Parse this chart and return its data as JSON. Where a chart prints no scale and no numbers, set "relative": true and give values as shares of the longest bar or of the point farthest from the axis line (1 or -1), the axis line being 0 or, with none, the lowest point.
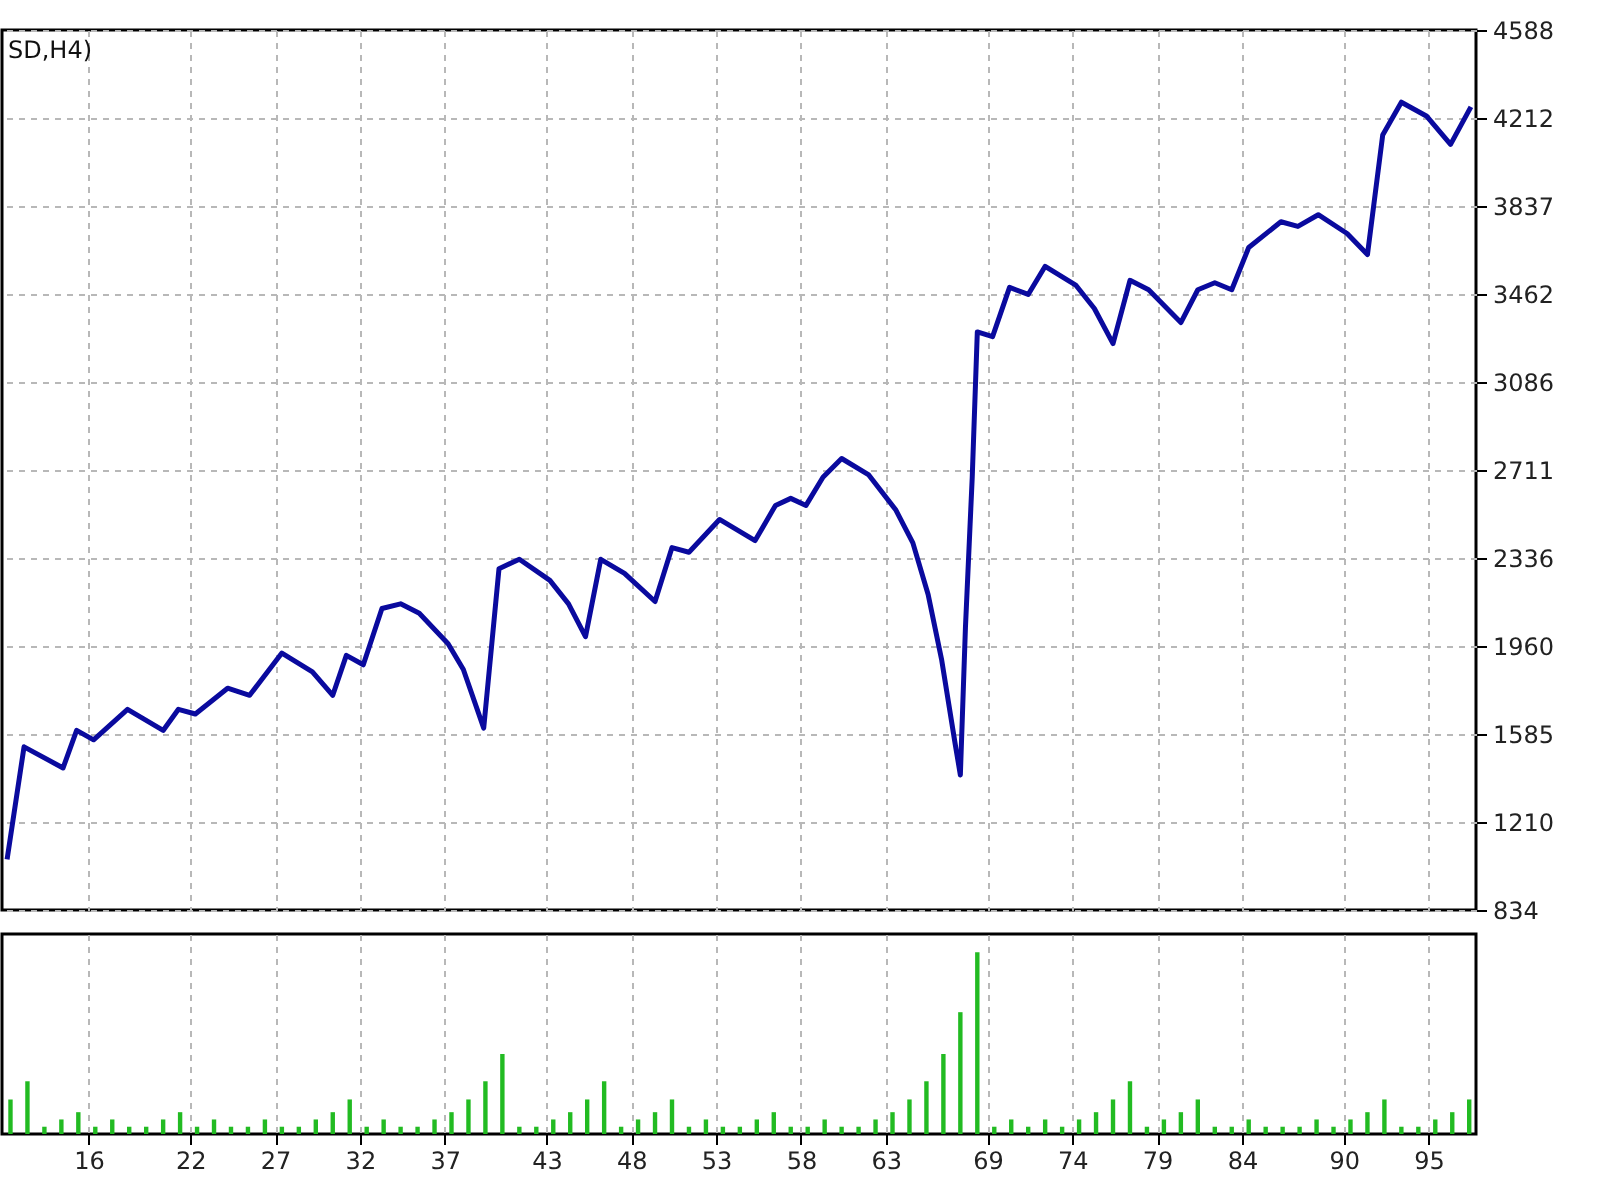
{
  "chart_data": [
    {
      "type": "line",
      "annotations": [
        "SD,H4)"
      ],
      "xlim": [
        10.9,
        97.8
      ],
      "ylim": [
        834,
        4588
      ],
      "xticks": [
        16,
        22,
        27,
        32,
        37,
        43,
        48,
        53,
        58,
        63,
        69,
        74,
        79,
        84,
        90,
        95
      ],
      "yticks": [
        834,
        1210,
        1585,
        1960,
        2336,
        2711,
        3086,
        3462,
        3837,
        4212,
        4588
      ],
      "tick_labels": "y",
      "grid": true,
      "line_style": "solid",
      "marker": "none",
      "series": [
        {
          "color": "#0a0a9e",
          "x": [
            11.2,
            12.2,
            14.5,
            15.3,
            16.3,
            18.3,
            20.4,
            21.3,
            22.3,
            24.2,
            25.5,
            27.4,
            29.2,
            30.4,
            31.2,
            32.2,
            33.3,
            34.4,
            35.5,
            37.2,
            38.1,
            39.3,
            40.2,
            41.4,
            43.2,
            44.3,
            45.3,
            46.2,
            47.6,
            49.4,
            50.4,
            51.4,
            53.2,
            55.3,
            56.5,
            57.4,
            58.3,
            59.3,
            60.4,
            62.0,
            63.6,
            64.6,
            65.5,
            66.3,
            67.1,
            67.4,
            67.7,
            68.1,
            68.4,
            69.3,
            70.3,
            71.4,
            72.4,
            74.2,
            75.3,
            76.4,
            77.4,
            78.5,
            80.4,
            81.4,
            82.4,
            83.4,
            84.4,
            86.3,
            87.3,
            88.5,
            90.2,
            91.4,
            92.3,
            93.4,
            94.9,
            96.3,
            97.5
          ],
          "values": [
            1050,
            1530,
            1440,
            1600,
            1560,
            1690,
            1600,
            1690,
            1670,
            1780,
            1750,
            1930,
            1850,
            1750,
            1920,
            1880,
            2120,
            2140,
            2100,
            1970,
            1860,
            1610,
            2290,
            2330,
            2240,
            2140,
            2000,
            2330,
            2270,
            2150,
            2380,
            2360,
            2500,
            2410,
            2560,
            2590,
            2560,
            2680,
            2760,
            2690,
            2540,
            2400,
            2180,
            1900,
            1540,
            1410,
            2040,
            2680,
            3300,
            3280,
            3490,
            3460,
            3580,
            3500,
            3400,
            3250,
            3520,
            3480,
            3340,
            3480,
            3510,
            3480,
            3660,
            3770,
            3750,
            3800,
            3720,
            3630,
            4140,
            4280,
            4220,
            4100,
            4260
          ]
        }
      ]
    },
    {
      "type": "bar",
      "relative": true,
      "xlim": [
        10.9,
        97.8
      ],
      "xticks": [
        16,
        22,
        27,
        32,
        37,
        43,
        48,
        53,
        58,
        63,
        69,
        74,
        79,
        84,
        90,
        95
      ],
      "tick_labels": "x",
      "grid": "x",
      "x": [
        11.4,
        12.4,
        13.4,
        14.4,
        15.4,
        16.4,
        17.4,
        18.4,
        19.4,
        20.4,
        21.4,
        22.4,
        23.4,
        24.4,
        25.4,
        26.4,
        27.4,
        28.4,
        29.4,
        30.4,
        31.4,
        32.4,
        33.4,
        34.4,
        35.4,
        36.4,
        37.4,
        38.4,
        39.4,
        40.4,
        41.4,
        42.4,
        43.4,
        44.4,
        45.4,
        46.4,
        47.4,
        48.4,
        49.4,
        50.4,
        51.4,
        52.4,
        53.4,
        54.4,
        55.4,
        56.4,
        57.4,
        58.4,
        59.4,
        60.4,
        61.4,
        62.4,
        63.4,
        64.4,
        65.4,
        66.4,
        67.4,
        68.4,
        69.4,
        70.4,
        71.4,
        72.4,
        73.4,
        74.4,
        75.4,
        76.4,
        77.4,
        78.4,
        79.4,
        80.4,
        81.4,
        82.4,
        83.4,
        84.4,
        85.4,
        86.4,
        87.4,
        88.4,
        89.4,
        90.4,
        91.4,
        92.4,
        93.4,
        94.4,
        95.4,
        96.4,
        97.4
      ],
      "series": [
        {
          "color": "#22bb22",
          "values": [
            0.19,
            0.29,
            0.04,
            0.08,
            0.12,
            0.04,
            0.08,
            0.04,
            0.04,
            0.08,
            0.12,
            0.04,
            0.08,
            0.04,
            0.04,
            0.08,
            0.04,
            0.04,
            0.08,
            0.12,
            0.19,
            0.04,
            0.08,
            0.04,
            0.04,
            0.08,
            0.12,
            0.19,
            0.29,
            0.44,
            0.04,
            0.04,
            0.08,
            0.12,
            0.19,
            0.29,
            0.04,
            0.08,
            0.12,
            0.19,
            0.04,
            0.08,
            0.04,
            0.04,
            0.08,
            0.12,
            0.04,
            0.04,
            0.08,
            0.04,
            0.04,
            0.08,
            0.12,
            0.19,
            0.29,
            0.44,
            0.67,
            1,
            0.04,
            0.08,
            0.04,
            0.08,
            0.04,
            0.08,
            0.12,
            0.19,
            0.29,
            0.04,
            0.08,
            0.12,
            0.19,
            0.04,
            0.04,
            0.08,
            0.04,
            0.04,
            0.04,
            0.08,
            0.04,
            0.08,
            0.12,
            0.19,
            0.04,
            0.04,
            0.08,
            0.12,
            0.19
          ]
        }
      ]
    }
  ]
}
